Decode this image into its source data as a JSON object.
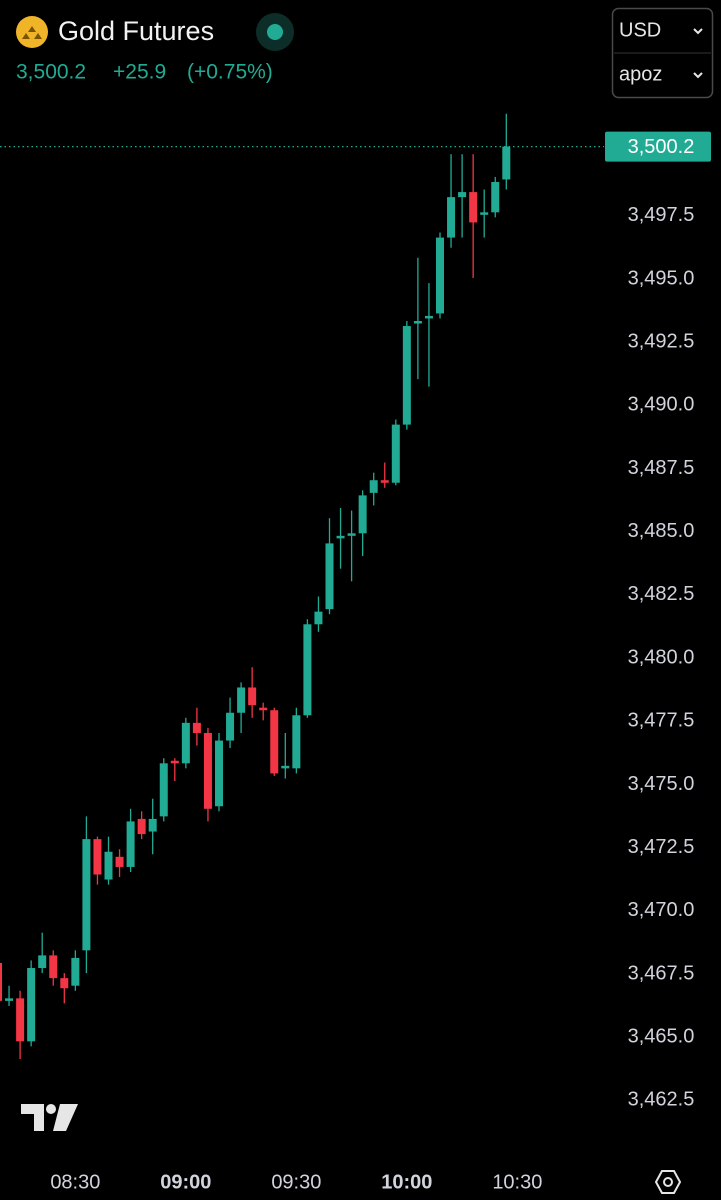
{
  "chart_data": {
    "type": "candlestick",
    "title": "Gold Futures",
    "change": "+25.9",
    "change_pct": "(+0.75%)",
    "currency": "USD",
    "selector": "apoz",
    "last": {
      "value": 3500.2,
      "label": "3,500.2"
    },
    "up_color": "#22ab94",
    "down_color": "#f23645",
    "ylim": [
      3460.5,
      3506.0
    ],
    "yticks": [
      {
        "value": 3462.5,
        "label": "3,462.5"
      },
      {
        "value": 3465.0,
        "label": "3,465.0"
      },
      {
        "value": 3467.5,
        "label": "3,467.5"
      },
      {
        "value": 3470.0,
        "label": "3,470.0"
      },
      {
        "value": 3472.5,
        "label": "3,472.5"
      },
      {
        "value": 3475.0,
        "label": "3,475.0"
      },
      {
        "value": 3477.5,
        "label": "3,477.5"
      },
      {
        "value": 3480.0,
        "label": "3,480.0"
      },
      {
        "value": 3482.5,
        "label": "3,482.5"
      },
      {
        "value": 3485.0,
        "label": "3,485.0"
      },
      {
        "value": 3487.5,
        "label": "3,487.5"
      },
      {
        "value": 3490.0,
        "label": "3,490.0"
      },
      {
        "value": 3492.5,
        "label": "3,492.5"
      },
      {
        "value": 3495.0,
        "label": "3,495.0"
      },
      {
        "value": 3497.5,
        "label": "3,497.5"
      }
    ],
    "xticks": [
      "08:30",
      "09:00",
      "09:30",
      "10:00",
      "10:30"
    ],
    "x": [
      "08:09",
      "08:12",
      "08:15",
      "08:18",
      "08:21",
      "08:24",
      "08:27",
      "08:30",
      "08:33",
      "08:36",
      "08:39",
      "08:42",
      "08:45",
      "08:48",
      "08:51",
      "08:54",
      "08:57",
      "09:00",
      "09:03",
      "09:06",
      "09:09",
      "09:12",
      "09:15",
      "09:18",
      "09:21",
      "09:24",
      "09:27",
      "09:30",
      "09:33",
      "09:36",
      "09:39",
      "09:42",
      "09:45",
      "09:48",
      "09:51",
      "09:54",
      "09:57",
      "10:00",
      "10:03",
      "10:06",
      "10:09",
      "10:12",
      "10:15",
      "10:18",
      "10:21",
      "10:24",
      "10:27"
    ],
    "open": [
      3467.9,
      3466.4,
      3466.5,
      3464.8,
      3467.7,
      3468.2,
      3467.3,
      3467.0,
      3468.4,
      3472.8,
      3471.2,
      3472.1,
      3471.7,
      3473.6,
      3473.1,
      3473.7,
      3475.9,
      3475.8,
      3477.4,
      3477.0,
      3474.1,
      3476.7,
      3477.8,
      3478.8,
      3478.0,
      3477.9,
      3475.6,
      3475.6,
      3477.7,
      3481.3,
      3481.9,
      3484.7,
      3484.8,
      3484.9,
      3486.5,
      3487.0,
      3486.9,
      3489.2,
      3493.2,
      3493.4,
      3493.6,
      3496.6,
      3498.2,
      3498.4,
      3497.5,
      3497.6,
      3498.9
    ],
    "high": [
      3468.0,
      3467.0,
      3466.8,
      3468.0,
      3469.1,
      3468.4,
      3467.5,
      3468.4,
      3473.7,
      3472.9,
      3472.9,
      3472.4,
      3474.0,
      3473.9,
      3474.4,
      3476.0,
      3476.0,
      3477.6,
      3478.0,
      3477.2,
      3477.0,
      3478.4,
      3479.0,
      3479.6,
      3478.2,
      3478.0,
      3477.0,
      3478.0,
      3481.5,
      3482.4,
      3485.5,
      3485.9,
      3485.8,
      3486.6,
      3487.3,
      3487.7,
      3489.4,
      3493.3,
      3495.8,
      3494.8,
      3496.8,
      3499.9,
      3499.9,
      3499.9,
      3498.5,
      3499.0,
      3501.5
    ],
    "low": [
      3466.0,
      3466.2,
      3464.1,
      3464.6,
      3467.5,
      3467.0,
      3466.3,
      3466.8,
      3467.5,
      3471.0,
      3471.0,
      3471.3,
      3471.5,
      3472.8,
      3472.2,
      3473.5,
      3475.1,
      3475.6,
      3476.5,
      3473.5,
      3473.9,
      3476.4,
      3477.0,
      3477.6,
      3477.5,
      3475.3,
      3475.2,
      3475.4,
      3477.6,
      3481.0,
      3481.7,
      3483.5,
      3483.0,
      3484.0,
      3486.0,
      3486.7,
      3486.8,
      3489.0,
      3491.0,
      3490.7,
      3493.4,
      3496.2,
      3496.6,
      3495.0,
      3496.6,
      3497.4,
      3498.5
    ],
    "close": [
      3466.4,
      3466.5,
      3464.8,
      3467.7,
      3468.2,
      3467.3,
      3466.9,
      3468.1,
      3472.8,
      3471.4,
      3472.3,
      3471.7,
      3473.5,
      3473.0,
      3473.6,
      3475.8,
      3475.8,
      3477.4,
      3477.0,
      3474.0,
      3476.7,
      3477.8,
      3478.8,
      3478.1,
      3477.9,
      3475.4,
      3475.7,
      3477.7,
      3481.3,
      3481.8,
      3484.5,
      3484.8,
      3484.9,
      3486.4,
      3487.0,
      3486.9,
      3489.2,
      3493.1,
      3493.3,
      3493.5,
      3496.6,
      3498.2,
      3498.4,
      3497.2,
      3497.6,
      3498.8,
      3500.2
    ]
  }
}
